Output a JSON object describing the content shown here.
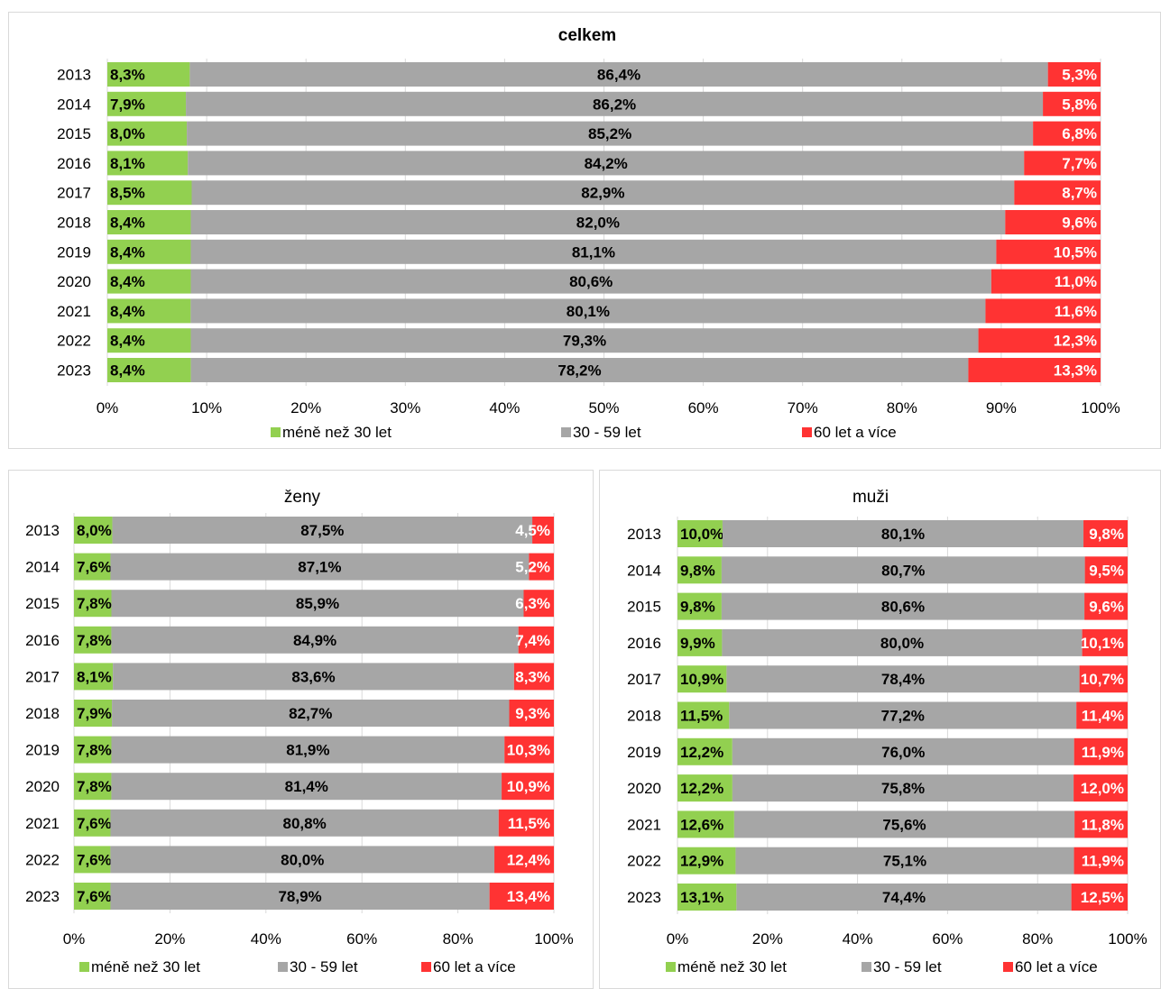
{
  "colors": {
    "young": "#92d050",
    "middle": "#a6a6a6",
    "old": "#ff3333",
    "grid": "#d9d9d9",
    "label_dark": "#000000",
    "label_light": "#ffffff"
  },
  "chart_data": [
    {
      "type": "bar",
      "orientation": "horizontal",
      "stacked": "percent",
      "title": "celkem",
      "categories": [
        "2013",
        "2014",
        "2015",
        "2016",
        "2017",
        "2018",
        "2019",
        "2020",
        "2021",
        "2022",
        "2023"
      ],
      "series": [
        {
          "name": "méně než 30 let",
          "color": "#92d050",
          "values": [
            8.3,
            7.9,
            8.0,
            8.1,
            8.5,
            8.4,
            8.4,
            8.4,
            8.4,
            8.4,
            8.4
          ],
          "labels": [
            "8,3%",
            "7,9%",
            "8,0%",
            "8,1%",
            "8,5%",
            "8,4%",
            "8,4%",
            "8,4%",
            "8,4%",
            "8,4%",
            "8,4%"
          ]
        },
        {
          "name": "30 - 59 let",
          "color": "#a6a6a6",
          "values": [
            86.4,
            86.2,
            85.2,
            84.2,
            82.9,
            82.0,
            81.1,
            80.6,
            80.1,
            79.3,
            78.2
          ],
          "labels": [
            "86,4%",
            "86,2%",
            "85,2%",
            "84,2%",
            "82,9%",
            "82,0%",
            "81,1%",
            "80,6%",
            "80,1%",
            "79,3%",
            "78,2%"
          ]
        },
        {
          "name": "60 let a více",
          "color": "#ff3333",
          "values": [
            5.3,
            5.8,
            6.8,
            7.7,
            8.7,
            9.6,
            10.5,
            11.0,
            11.6,
            12.3,
            13.3
          ],
          "labels": [
            "5,3%",
            "5,8%",
            "6,8%",
            "7,7%",
            "8,7%",
            "9,6%",
            "10,5%",
            "11,0%",
            "11,6%",
            "12,3%",
            "13,3%"
          ]
        }
      ],
      "xlim": [
        0,
        100
      ],
      "x_ticks": [
        "0%",
        "10%",
        "20%",
        "30%",
        "40%",
        "50%",
        "60%",
        "70%",
        "80%",
        "90%",
        "100%"
      ],
      "grid": true,
      "legend": "bottom"
    },
    {
      "type": "bar",
      "orientation": "horizontal",
      "stacked": "percent",
      "title": "ženy",
      "categories": [
        "2013",
        "2014",
        "2015",
        "2016",
        "2017",
        "2018",
        "2019",
        "2020",
        "2021",
        "2022",
        "2023"
      ],
      "series": [
        {
          "name": "méně než 30 let",
          "color": "#92d050",
          "values": [
            8.0,
            7.6,
            7.8,
            7.8,
            8.1,
            7.9,
            7.8,
            7.8,
            7.6,
            7.6,
            7.6
          ],
          "labels": [
            "8,0%",
            "7,6%",
            "7,8%",
            "7,8%",
            "8,1%",
            "7,9%",
            "7,8%",
            "7,8%",
            "7,6%",
            "7,6%",
            "7,6%"
          ]
        },
        {
          "name": "30 - 59 let",
          "color": "#a6a6a6",
          "values": [
            87.5,
            87.1,
            85.9,
            84.9,
            83.6,
            82.7,
            81.9,
            81.4,
            80.8,
            80.0,
            78.9
          ],
          "labels": [
            "87,5%",
            "87,1%",
            "85,9%",
            "84,9%",
            "83,6%",
            "82,7%",
            "81,9%",
            "81,4%",
            "80,8%",
            "80,0%",
            "78,9%"
          ]
        },
        {
          "name": "60 let a více",
          "color": "#ff3333",
          "values": [
            4.5,
            5.2,
            6.3,
            7.4,
            8.3,
            9.3,
            10.3,
            10.9,
            11.5,
            12.4,
            13.4
          ],
          "labels": [
            "4,5%",
            "5,2%",
            "6,3%",
            "7,4%",
            "8,3%",
            "9,3%",
            "10,3%",
            "10,9%",
            "11,5%",
            "12,4%",
            "13,4%"
          ]
        }
      ],
      "xlim": [
        0,
        100
      ],
      "x_ticks": [
        "0%",
        "20%",
        "40%",
        "60%",
        "80%",
        "100%"
      ],
      "grid": true,
      "legend": "bottom"
    },
    {
      "type": "bar",
      "orientation": "horizontal",
      "stacked": "percent",
      "title": "muži",
      "categories": [
        "2013",
        "2014",
        "2015",
        "2016",
        "2017",
        "2018",
        "2019",
        "2020",
        "2021",
        "2022",
        "2023"
      ],
      "series": [
        {
          "name": "méně než 30 let",
          "color": "#92d050",
          "values": [
            10.0,
            9.8,
            9.8,
            9.9,
            10.9,
            11.5,
            12.2,
            12.2,
            12.6,
            12.9,
            13.1
          ],
          "labels": [
            "10,0%",
            "9,8%",
            "9,8%",
            "9,9%",
            "10,9%",
            "11,5%",
            "12,2%",
            "12,2%",
            "12,6%",
            "12,9%",
            "13,1%"
          ]
        },
        {
          "name": "30 - 59 let",
          "color": "#a6a6a6",
          "values": [
            80.1,
            80.7,
            80.6,
            80.0,
            78.4,
            77.2,
            76.0,
            75.8,
            75.6,
            75.1,
            74.4
          ],
          "labels": [
            "80,1%",
            "80,7%",
            "80,6%",
            "80,0%",
            "78,4%",
            "77,2%",
            "76,0%",
            "75,8%",
            "75,6%",
            "75,1%",
            "74,4%"
          ]
        },
        {
          "name": "60 let a více",
          "color": "#ff3333",
          "values": [
            9.8,
            9.5,
            9.6,
            10.1,
            10.7,
            11.4,
            11.9,
            12.0,
            11.8,
            11.9,
            12.5
          ],
          "labels": [
            "9,8%",
            "9,5%",
            "9,6%",
            "10,1%",
            "10,7%",
            "11,4%",
            "11,9%",
            "12,0%",
            "11,8%",
            "11,9%",
            "12,5%"
          ]
        }
      ],
      "xlim": [
        0,
        100
      ],
      "x_ticks": [
        "0%",
        "20%",
        "40%",
        "60%",
        "80%",
        "100%"
      ],
      "grid": true,
      "legend": "bottom"
    }
  ]
}
